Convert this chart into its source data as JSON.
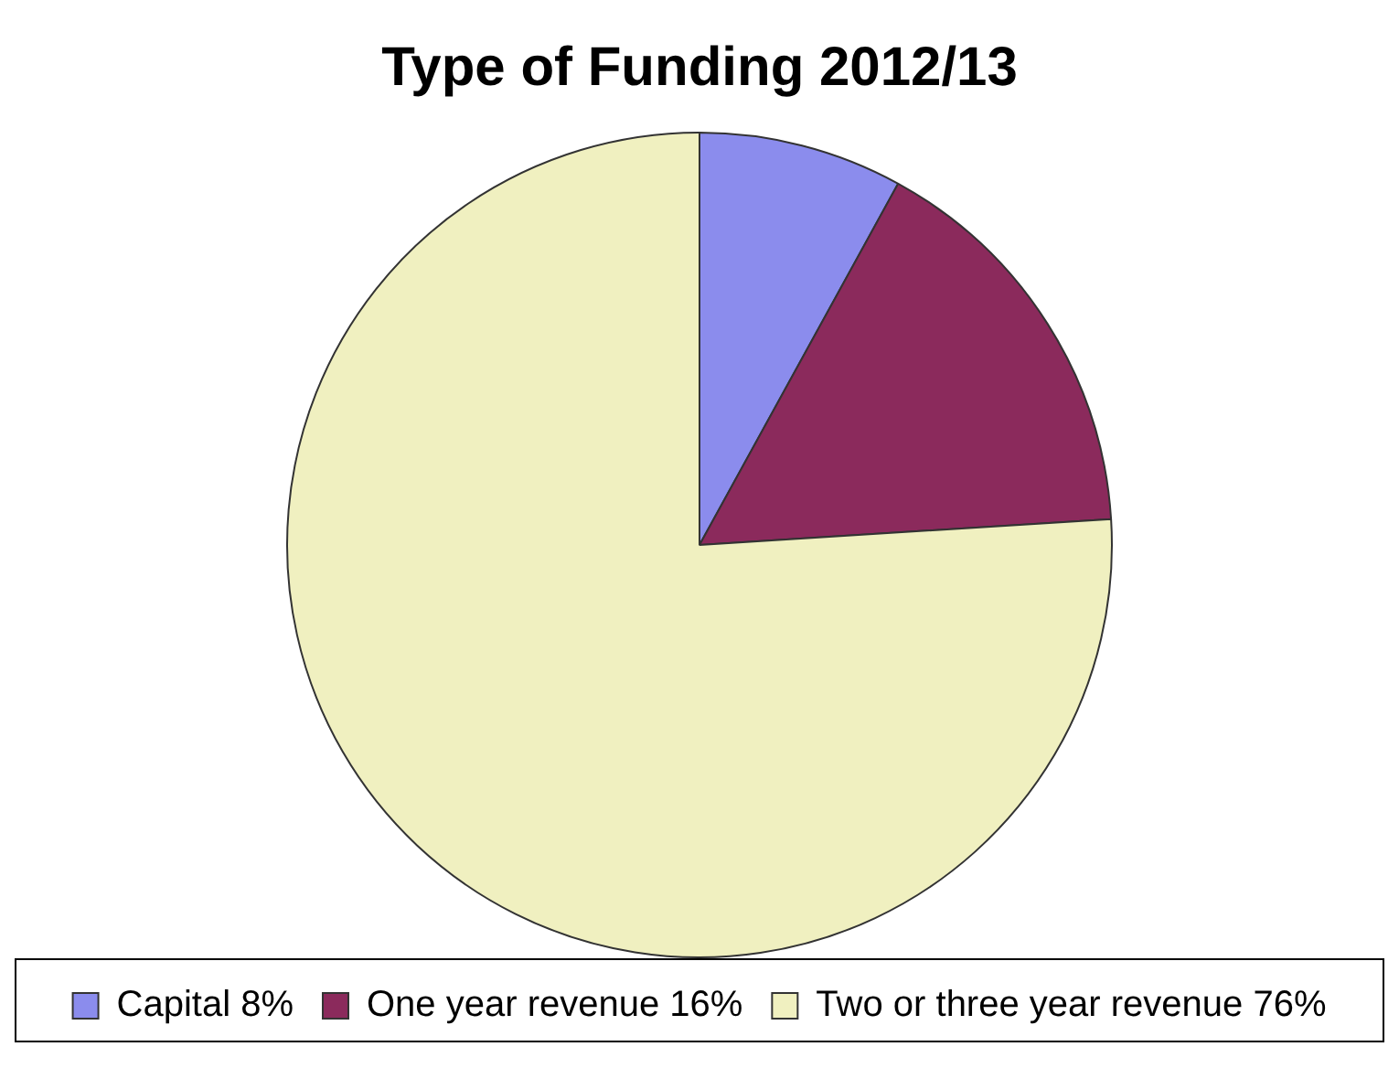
{
  "chart_data": {
    "type": "pie",
    "title": "Type of Funding 2012/13",
    "categories": [
      "Capital 8%",
      "One year revenue 16%",
      "Two or three year revenue 76%"
    ],
    "values": [
      8,
      16,
      76
    ],
    "colors": [
      "#8b8ced",
      "#8b2a5c",
      "#f0f0c0"
    ],
    "legend": "bottom"
  }
}
